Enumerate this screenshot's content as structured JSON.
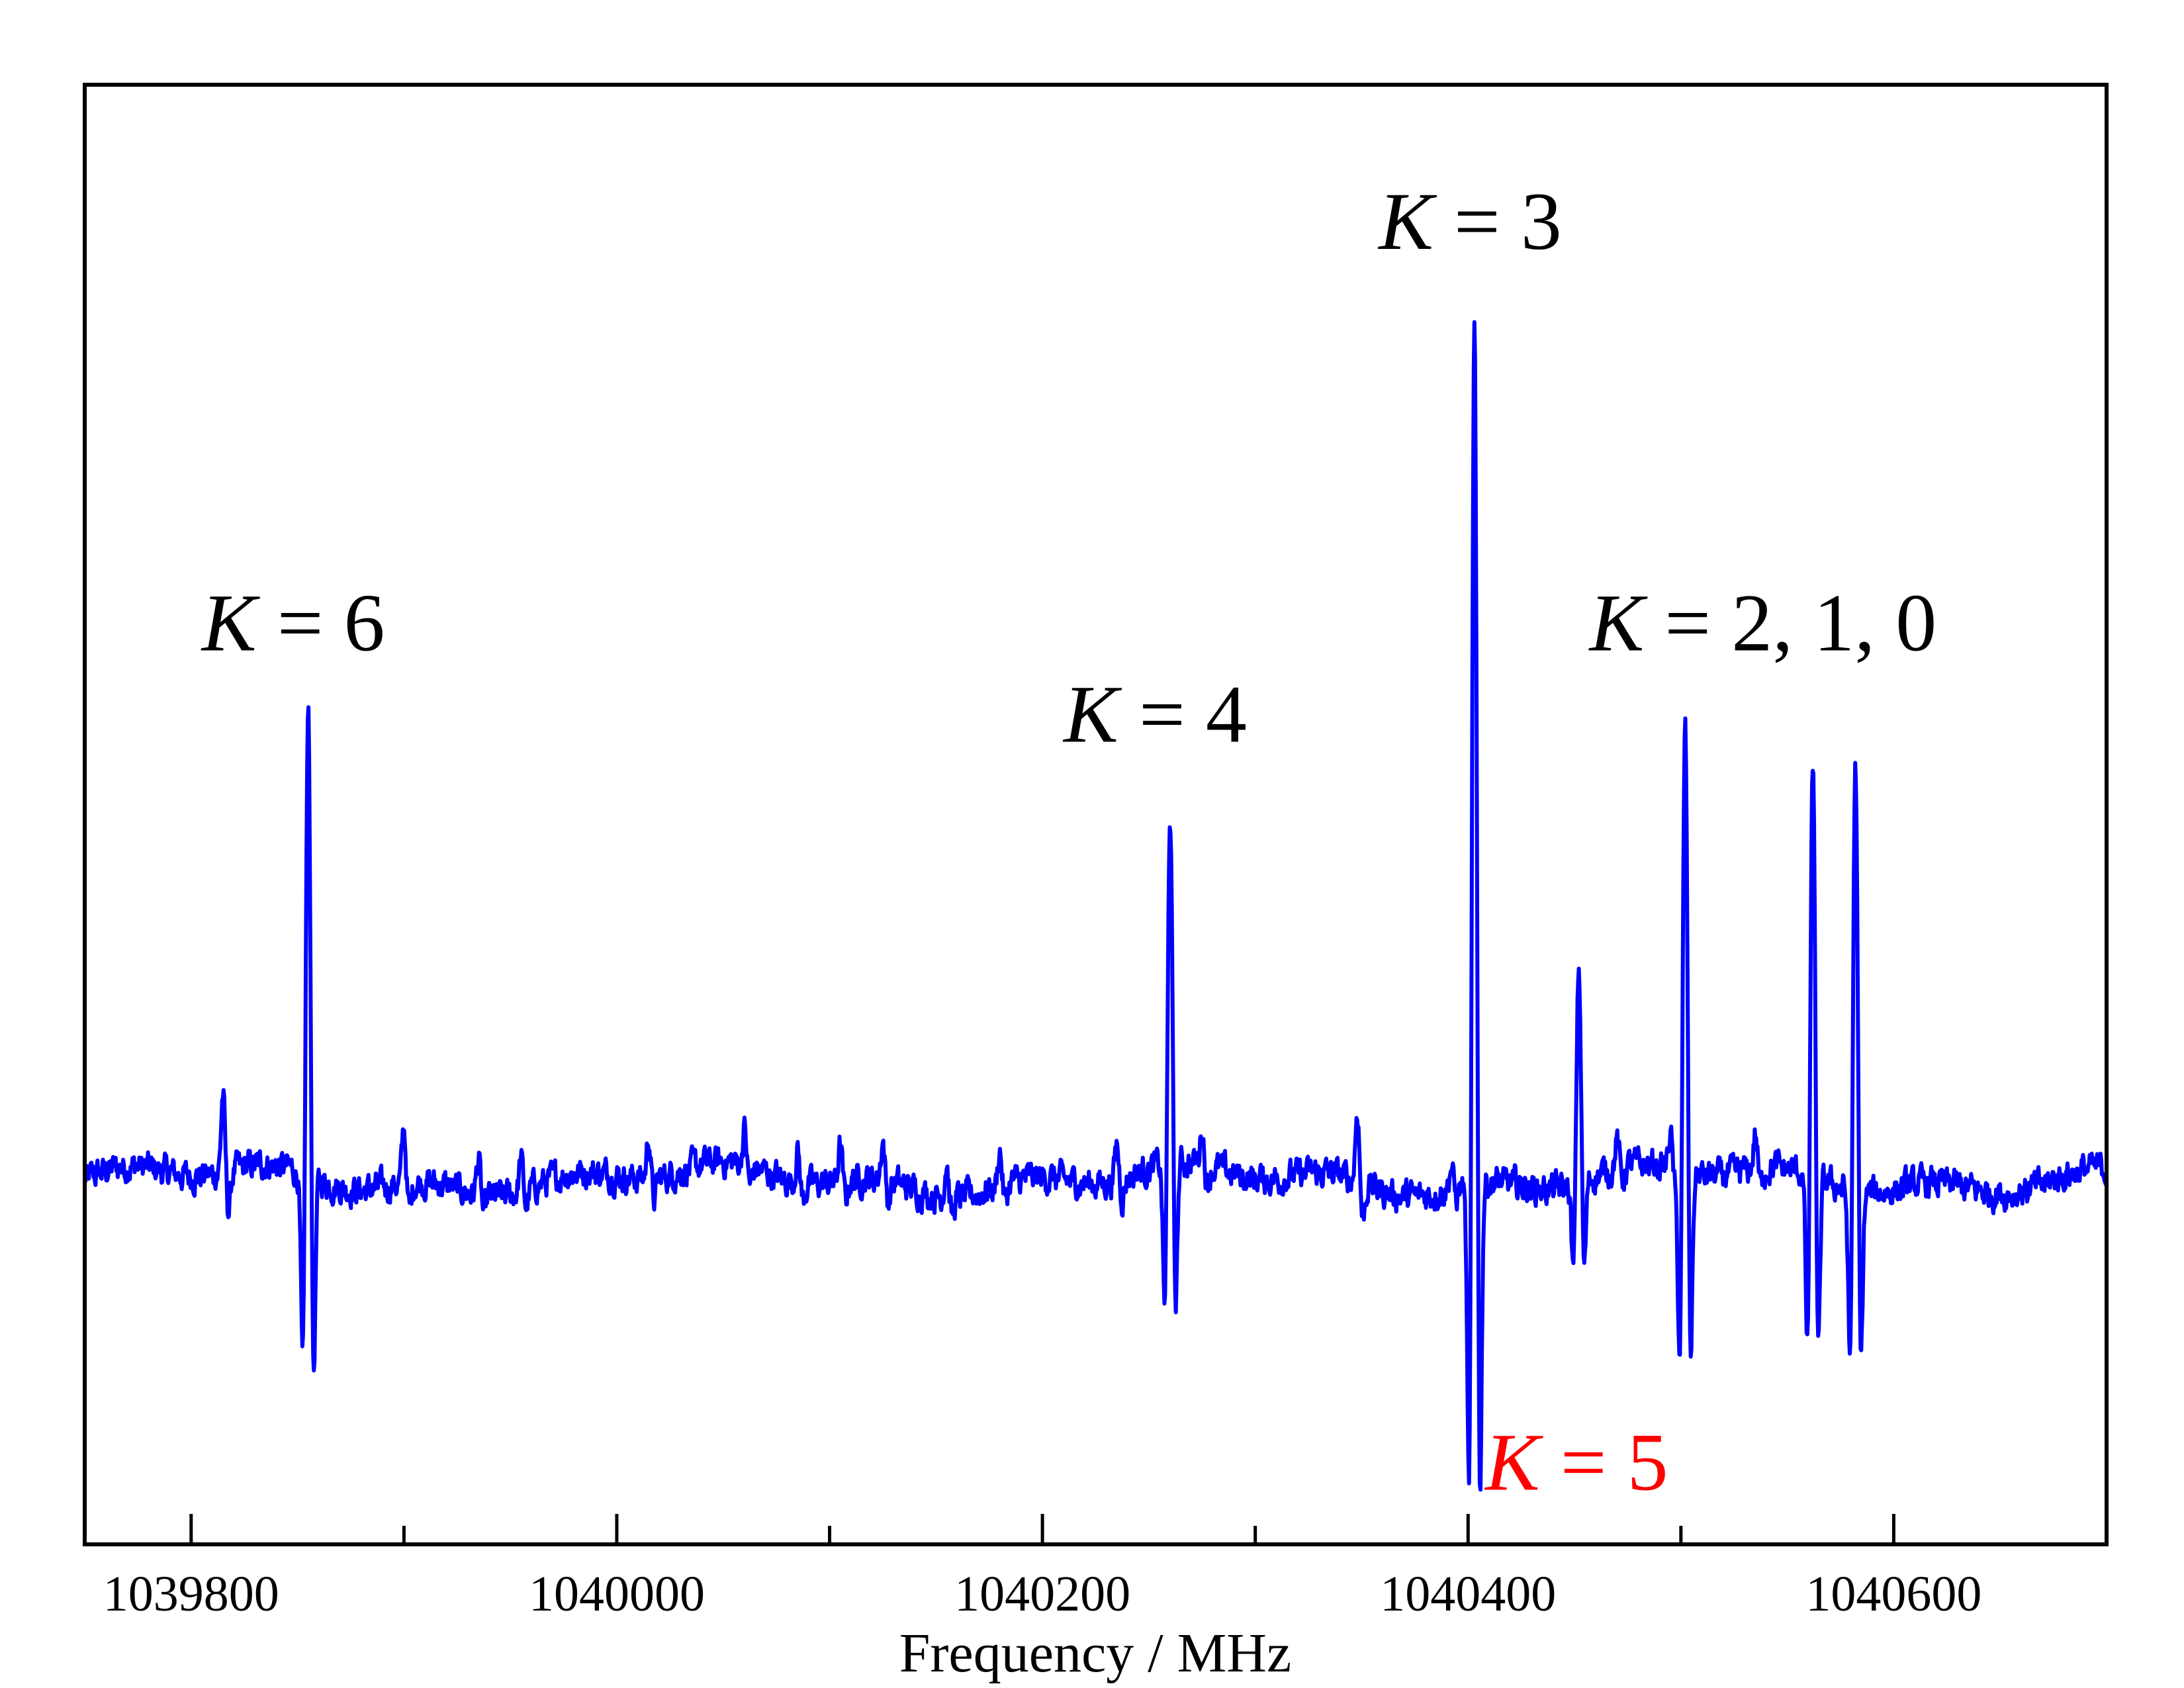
{
  "chart_data": {
    "type": "line",
    "title": "",
    "xlabel": "Frequency / MHz",
    "ylabel": "",
    "xlim": [
      1039750,
      1040700
    ],
    "ylim": [
      -1.0,
      3.0
    ],
    "grid": false,
    "yticks_shown": false,
    "x_major_ticks": [
      1039800,
      1040000,
      1040200,
      1040400,
      1040600
    ],
    "x_tick_labels": [
      "1039800",
      "1040000",
      "1040200",
      "1040400",
      "1040600"
    ],
    "x_minor_ticks": [
      1039900,
      1040100,
      1040300,
      1040500
    ],
    "series": [
      {
        "name": "spectrum",
        "color": "#0000ff",
        "baseline_noise": 0.04,
        "lines": [
          {
            "x": 1039855,
            "peak": 1.3,
            "trough": -0.62
          },
          {
            "x": 1040260,
            "peak": 0.98,
            "trough": -0.45
          },
          {
            "x": 1040403,
            "peak": 2.4,
            "trough": -1.0
          },
          {
            "x": 1040452,
            "peak": 0.6,
            "trough": -0.28
          },
          {
            "x": 1040502,
            "peak": 1.25,
            "trough": -0.58
          },
          {
            "x": 1040562,
            "peak": 1.15,
            "trough": -0.55
          },
          {
            "x": 1040582,
            "peak": 1.2,
            "trough": -0.55
          }
        ],
        "weak_features": [
          {
            "x": 1039815,
            "amp": 0.22
          },
          {
            "x": 1039900,
            "amp": 0.15
          },
          {
            "x": 1039935,
            "amp": 0.1
          },
          {
            "x": 1039955,
            "amp": 0.09
          },
          {
            "x": 1040015,
            "amp": 0.12
          },
          {
            "x": 1040060,
            "amp": 0.1
          },
          {
            "x": 1040085,
            "amp": 0.09
          },
          {
            "x": 1040105,
            "amp": 0.1
          },
          {
            "x": 1040125,
            "amp": 0.11
          },
          {
            "x": 1040155,
            "amp": 0.1
          },
          {
            "x": 1040180,
            "amp": 0.1
          },
          {
            "x": 1040235,
            "amp": 0.1
          },
          {
            "x": 1040275,
            "amp": 0.1
          },
          {
            "x": 1040348,
            "amp": 0.2
          },
          {
            "x": 1040392,
            "amp": 0.06
          },
          {
            "x": 1040470,
            "amp": 0.08
          },
          {
            "x": 1040495,
            "amp": 0.1
          },
          {
            "x": 1040535,
            "amp": 0.1
          }
        ]
      }
    ],
    "annotations": [
      {
        "k": "K",
        "rest": " = 6",
        "x": 1039805,
        "y": 1.45,
        "color": "#000000"
      },
      {
        "k": "K",
        "rest": " = 4",
        "x": 1040210,
        "y": 1.2,
        "color": "#000000"
      },
      {
        "k": "K",
        "rest": " = 3",
        "x": 1040358,
        "y": 2.55,
        "color": "#000000"
      },
      {
        "k": "K",
        "rest": " = 2, 1, 0",
        "x": 1040457,
        "y": 1.45,
        "color": "#000000"
      },
      {
        "k": "K",
        "rest": " = 5",
        "x": 1040408,
        "y": -0.85,
        "color": "#ff0000"
      }
    ]
  }
}
